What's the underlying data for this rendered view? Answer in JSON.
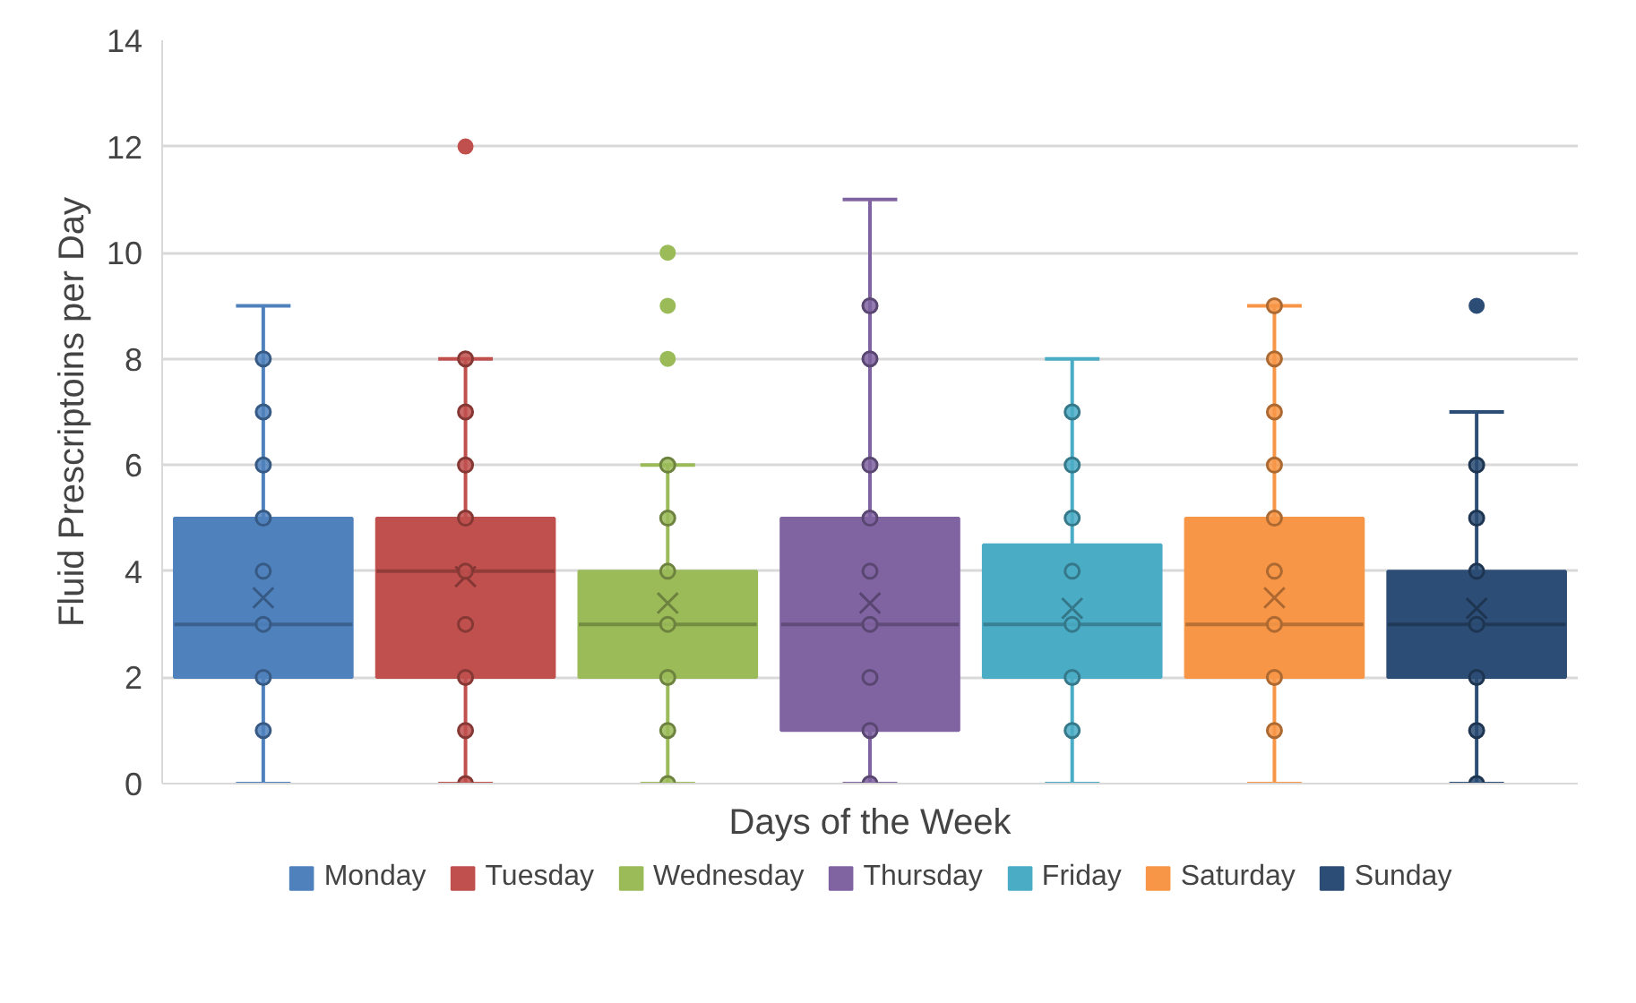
{
  "chart_data": {
    "type": "box",
    "xlabel": "Days of the Week",
    "ylabel": "Fluid Prescriptoins per Day",
    "categories": [
      null,
      null,
      null,
      null,
      null,
      null,
      null
    ],
    "ylim": [
      0,
      14
    ],
    "yticks": [
      0,
      2,
      4,
      6,
      8,
      10,
      12,
      14
    ],
    "grid": "y",
    "legend": "bottom",
    "tick_labels": "y",
    "series": [
      {
        "name": "Monday",
        "color": "#4f81bd",
        "boxes": [
          {
            "low": 0,
            "q1": 2,
            "median": 3,
            "q3": 5,
            "high": 9,
            "mean": 3.5
          },
          null,
          null,
          null,
          null,
          null,
          null
        ]
      },
      {
        "name": "Tuesday",
        "color": "#c0504d",
        "boxes": [
          null,
          {
            "low": 0,
            "q1": 2,
            "median": 4,
            "q3": 5,
            "high": 8,
            "mean": 3.9,
            "outliers": [
              12
            ]
          },
          null,
          null,
          null,
          null,
          null
        ]
      },
      {
        "name": "Wednesday",
        "color": "#9bbb59",
        "boxes": [
          null,
          null,
          {
            "low": 0,
            "q1": 2,
            "median": 3,
            "q3": 4,
            "high": 6,
            "mean": 3.4,
            "outliers": [
              8,
              9,
              10
            ]
          },
          null,
          null,
          null,
          null
        ]
      },
      {
        "name": "Thursday",
        "color": "#8064a2",
        "boxes": [
          null,
          null,
          null,
          {
            "low": 0,
            "q1": 1,
            "median": 3,
            "q3": 5,
            "high": 11,
            "mean": 3.4
          },
          null,
          null,
          null
        ]
      },
      {
        "name": "Friday",
        "color": "#4bacc6",
        "boxes": [
          null,
          null,
          null,
          null,
          {
            "low": 0,
            "q1": 2,
            "median": 3,
            "q3": 4.5,
            "high": 8,
            "mean": 3.3
          },
          null,
          null
        ]
      },
      {
        "name": "Saturday",
        "color": "#f79646",
        "boxes": [
          null,
          null,
          null,
          null,
          null,
          {
            "low": 0,
            "q1": 2,
            "median": 3,
            "q3": 5,
            "high": 9,
            "mean": 3.5
          },
          null
        ]
      },
      {
        "name": "Sunday",
        "color": "#2c4d75",
        "boxes": [
          null,
          null,
          null,
          null,
          null,
          null,
          {
            "low": 0,
            "q1": 2,
            "median": 3,
            "q3": 4,
            "high": 7,
            "mean": 3.3,
            "outliers": [
              9
            ]
          }
        ]
      },
      {
        "type": "scatter",
        "colors": [
          "#4f81bd",
          "#c0504d",
          "#9bbb59",
          "#8064a2",
          "#4bacc6",
          "#f79646",
          "#2c4d75"
        ],
        "values": [
          null,
          0,
          0,
          0,
          null,
          null,
          0
        ]
      },
      {
        "type": "scatter",
        "colors": [
          "#4f81bd",
          "#c0504d",
          "#9bbb59",
          "#8064a2",
          "#4bacc6",
          "#f79646",
          "#2c4d75"
        ],
        "values": [
          1,
          1,
          1,
          1,
          1,
          1,
          1
        ]
      },
      {
        "type": "scatter",
        "colors": [
          "#4f81bd",
          "#c0504d",
          "#9bbb59",
          "#8064a2",
          "#4bacc6",
          "#f79646",
          "#2c4d75"
        ],
        "values": [
          2,
          2,
          2,
          2,
          2,
          2,
          2
        ]
      },
      {
        "type": "scatter",
        "colors": [
          "#4f81bd",
          "#c0504d",
          "#9bbb59",
          "#8064a2",
          "#4bacc6",
          "#f79646",
          "#2c4d75"
        ],
        "values": [
          3,
          3,
          3,
          3,
          3,
          3,
          3
        ]
      },
      {
        "type": "scatter",
        "colors": [
          "#4f81bd",
          "#c0504d",
          "#9bbb59",
          "#8064a2",
          "#4bacc6",
          "#f79646",
          "#2c4d75"
        ],
        "values": [
          4,
          4,
          4,
          4,
          4,
          4,
          4
        ]
      },
      {
        "type": "scatter",
        "colors": [
          "#4f81bd",
          "#c0504d",
          "#9bbb59",
          "#8064a2",
          "#4bacc6",
          "#f79646",
          "#2c4d75"
        ],
        "values": [
          5,
          5,
          5,
          5,
          5,
          5,
          5
        ]
      },
      {
        "type": "scatter",
        "colors": [
          "#4f81bd",
          "#c0504d",
          "#9bbb59",
          "#8064a2",
          "#4bacc6",
          "#f79646",
          "#2c4d75"
        ],
        "values": [
          6,
          6,
          6,
          6,
          6,
          6,
          6
        ]
      },
      {
        "type": "scatter",
        "colors": [
          "#4f81bd",
          "#c0504d",
          "#9bbb59",
          "#8064a2",
          "#4bacc6",
          "#f79646",
          "#2c4d75"
        ],
        "values": [
          7,
          7,
          null,
          null,
          7,
          7,
          null
        ]
      },
      {
        "type": "scatter",
        "colors": [
          "#4f81bd",
          "#c0504d",
          "#9bbb59",
          "#8064a2",
          "#4bacc6",
          "#f79646",
          "#2c4d75"
        ],
        "values": [
          8,
          8,
          null,
          8,
          null,
          8,
          null
        ]
      },
      {
        "type": "scatter",
        "colors": [
          "#4f81bd",
          "#c0504d",
          "#9bbb59",
          "#8064a2",
          "#4bacc6",
          "#f79646",
          "#2c4d75"
        ],
        "values": [
          null,
          null,
          null,
          9,
          null,
          9,
          null
        ]
      }
    ]
  }
}
